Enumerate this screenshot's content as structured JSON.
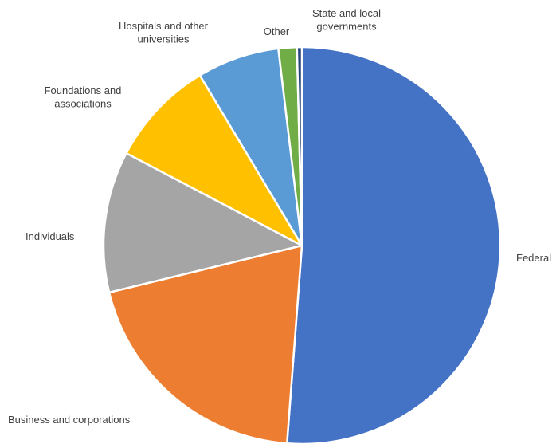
{
  "chart_data": {
    "type": "pie",
    "title": "",
    "start_angle_deg": 0,
    "direction": "clockwise",
    "slices": [
      {
        "label": "Federal",
        "value": 51.2,
        "color": "#4472C4"
      },
      {
        "label": "Business and corporations",
        "value": 20.0,
        "color": "#ED7D31"
      },
      {
        "label": "Individuals",
        "value": 11.5,
        "color": "#A5A5A5"
      },
      {
        "label": "Foundations and associations",
        "value": 8.7,
        "color": "#FFC000"
      },
      {
        "label": "Hospitals and other universities",
        "value": 6.7,
        "color": "#5B9BD5"
      },
      {
        "label": "Other",
        "value": 1.5,
        "color": "#70AD47"
      },
      {
        "label": "State and local governments",
        "value": 0.4,
        "color": "#264478"
      }
    ]
  }
}
